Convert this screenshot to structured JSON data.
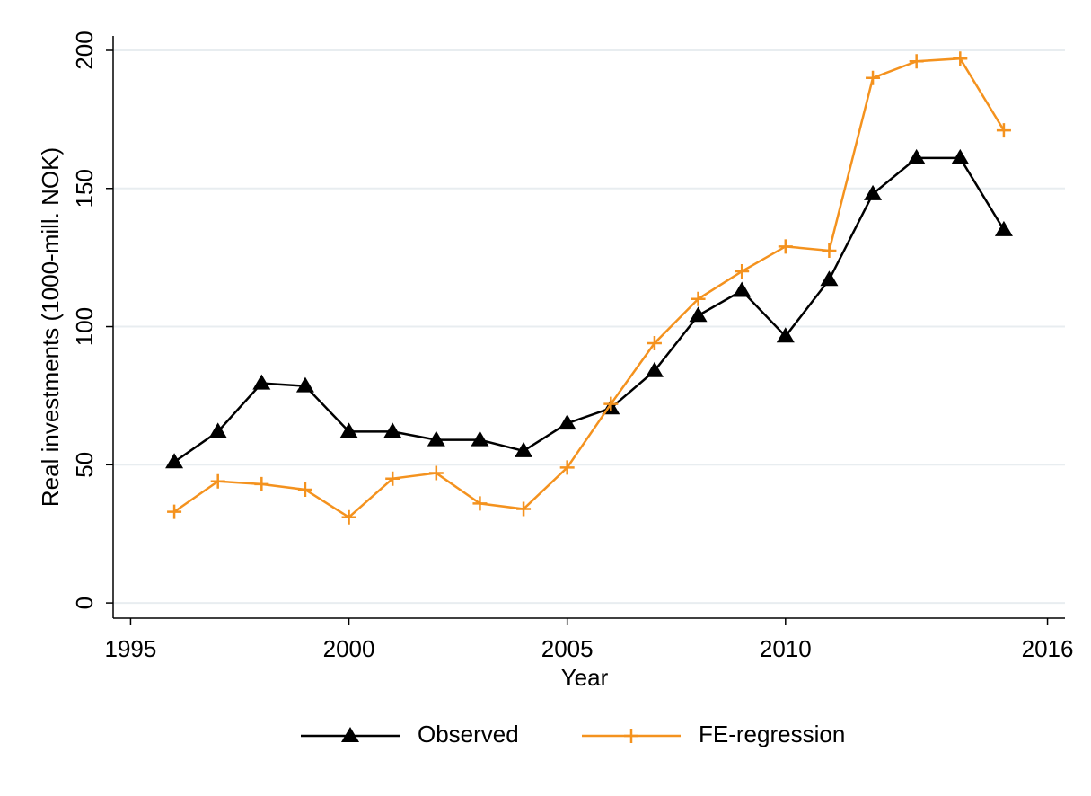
{
  "chart_data": {
    "type": "line",
    "x_label": "Year",
    "y_label": "Real investments (1000-mill. NOK)",
    "x": [
      1996,
      1997,
      1998,
      1999,
      2000,
      2001,
      2002,
      2003,
      2004,
      2005,
      2006,
      2007,
      2008,
      2009,
      2010,
      2011,
      2012,
      2013,
      2014,
      2015
    ],
    "series": [
      {
        "name": "Observed",
        "color": "#000000",
        "marker": "triangle",
        "values": [
          51,
          62,
          79.5,
          78.5,
          62,
          62,
          59,
          59,
          55,
          65,
          70.5,
          84,
          104,
          113,
          96.5,
          117,
          148,
          161,
          161,
          135
        ]
      },
      {
        "name": "FE-regression",
        "color": "#f4921e",
        "marker": "plus",
        "values": [
          33,
          44,
          43,
          41,
          31,
          45,
          47,
          36,
          34,
          49,
          72,
          94,
          110,
          120,
          129,
          127.5,
          190,
          196,
          197,
          171
        ]
      }
    ],
    "xlim": [
      1994.6,
      2016.4
    ],
    "xticks": [
      1995,
      2000,
      2005,
      2010,
      2016
    ],
    "ylim": [
      -5.5,
      205.2
    ],
    "yticks": [
      0,
      50,
      100,
      150,
      200
    ],
    "grid": true,
    "legend": "bottom"
  }
}
